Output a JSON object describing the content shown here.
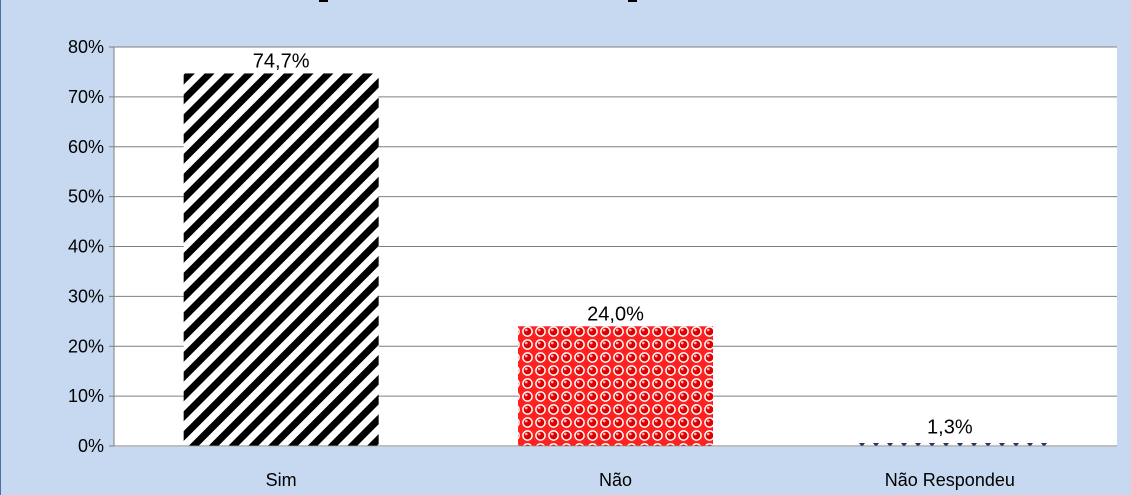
{
  "chart_data": {
    "type": "bar",
    "title": "",
    "xlabel": "",
    "ylabel": "",
    "categories": [
      "Sim",
      "Não",
      "Não Respondeu"
    ],
    "values": [
      74.7,
      24.0,
      1.3
    ],
    "data_labels": [
      "74,7%",
      "24,0%",
      "1,3%"
    ],
    "ylim": [
      0,
      80
    ],
    "yticks": [
      0,
      10,
      20,
      30,
      40,
      50,
      60,
      70,
      80
    ],
    "ytick_labels": [
      "0%",
      "10%",
      "20%",
      "30%",
      "40%",
      "50%",
      "60%",
      "70%",
      "80%"
    ],
    "grid": true,
    "legend": "none",
    "bar_fills": [
      "diagonal-stripes-black",
      "red-dots",
      "navy-dots-sparse"
    ],
    "colors": {
      "plot_background": "#ffffff",
      "frame_background": "#c6d9f1",
      "bar1": "#000000",
      "bar2": "#ff0000",
      "bar3": "#1f3864"
    }
  }
}
